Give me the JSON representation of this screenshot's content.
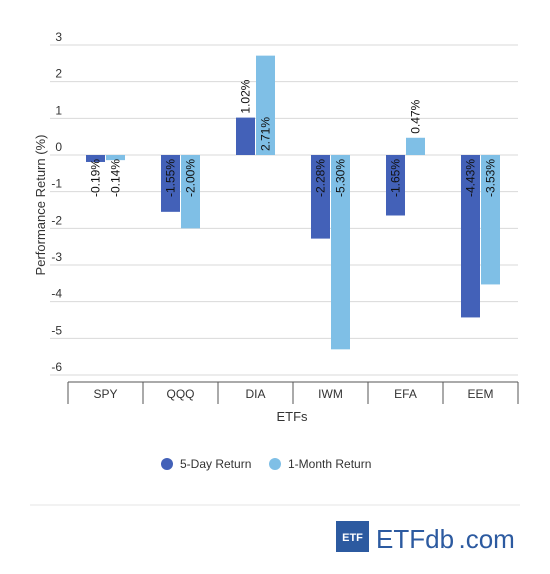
{
  "chart_data": {
    "type": "bar",
    "categories": [
      "SPY",
      "QQQ",
      "DIA",
      "IWM",
      "EFA",
      "EEM"
    ],
    "series": [
      {
        "name": "5-Day Return",
        "values": [
          -0.19,
          -1.55,
          1.02,
          -2.28,
          -1.65,
          -4.43
        ],
        "labels": [
          "-0.19%",
          "-1.55%",
          "1.02%",
          "-2.28%",
          "-1.65%",
          "-4.43%"
        ]
      },
      {
        "name": "1-Month Return",
        "values": [
          -0.14,
          -2.0,
          2.71,
          -5.3,
          0.47,
          -3.53
        ],
        "labels": [
          "-0.14%",
          "-2.00%",
          "2.71%",
          "-5.30%",
          "0.47%",
          "-3.53%"
        ]
      }
    ],
    "xlabel": "ETFs",
    "ylabel": "Performance Return (%)",
    "ylim": [
      -6,
      3
    ],
    "yticks": [
      3,
      2,
      1,
      0,
      -1,
      -2,
      -3,
      -4,
      -5,
      -6
    ],
    "grid": true,
    "legend_position": "bottom"
  },
  "colors": {
    "series_1": "#4361b8",
    "series_2": "#7fbfe6",
    "grid": "#d9d9d9",
    "axis": "#555555"
  },
  "logo": {
    "badge": "ETF",
    "name_main": "ETFdb",
    "name_suffix": ".com"
  }
}
